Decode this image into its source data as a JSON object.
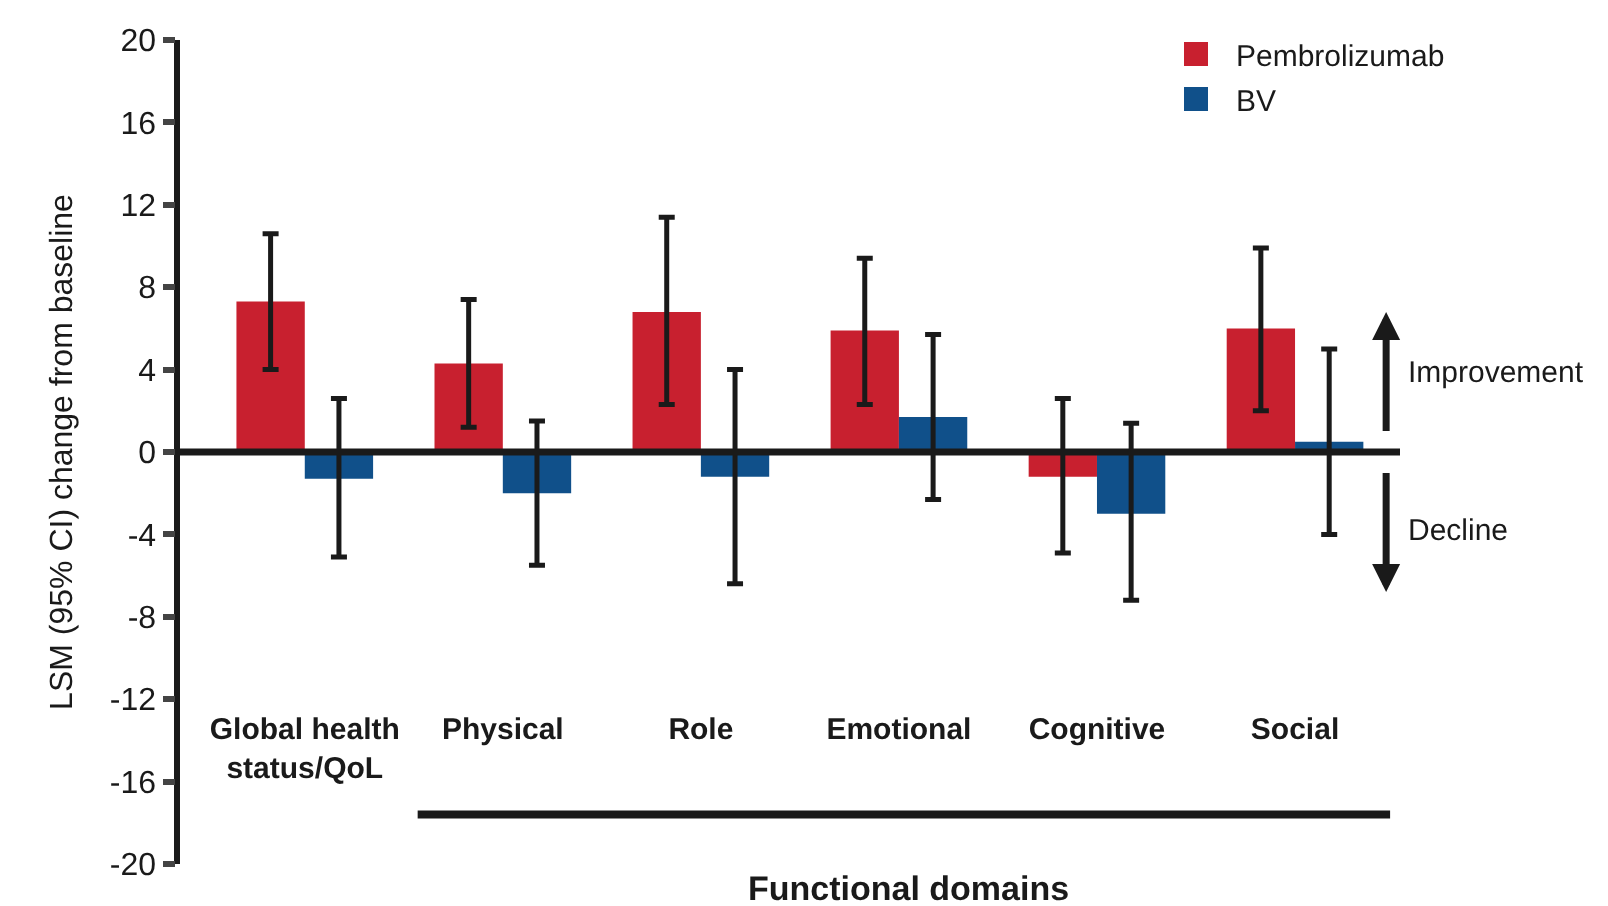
{
  "chart_data": {
    "type": "bar",
    "xlabel": "Functional domains",
    "ylabel": "LSM (95% CI) change from baseline",
    "categories": [
      "Global health status/QoL",
      "Physical",
      "Role",
      "Emotional",
      "Cognitive",
      "Social"
    ],
    "series": [
      {
        "name": "Pembrolizumab",
        "color": "#c8202f",
        "values": [
          7.3,
          4.3,
          6.8,
          5.9,
          -1.2,
          6.0
        ],
        "errors": [
          [
            4.0,
            10.6
          ],
          [
            1.2,
            7.4
          ],
          [
            2.3,
            11.4
          ],
          [
            2.3,
            9.4
          ],
          [
            -4.9,
            2.6
          ],
          [
            2.0,
            9.9
          ]
        ]
      },
      {
        "name": "BV",
        "color": "#10508a",
        "values": [
          -1.3,
          -2.0,
          -1.2,
          1.7,
          -3.0,
          0.5
        ],
        "errors": [
          [
            -5.1,
            2.6
          ],
          [
            -5.5,
            1.5
          ],
          [
            -6.4,
            4.0
          ],
          [
            -2.3,
            5.7
          ],
          [
            -7.2,
            1.4
          ],
          [
            -4.0,
            5.0
          ]
        ]
      }
    ],
    "ylim": [
      -20,
      20
    ],
    "yticks": [
      -20,
      -16,
      -12,
      -8,
      -4,
      0,
      4,
      8,
      12,
      16,
      20
    ],
    "annotations": [
      "Improvement",
      "Decline"
    ],
    "ref_lines": [
      {
        "axis": "y",
        "value": 0,
        "color": "#1a1a1a"
      }
    ],
    "legend": "top right"
  }
}
